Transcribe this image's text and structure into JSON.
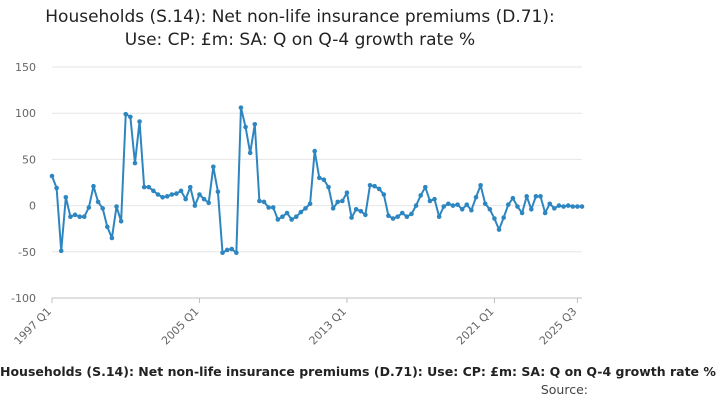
{
  "chart_data": {
    "type": "line",
    "title_line1": "Households (S.14): Net non-life insurance premiums (D.71):",
    "title_line2": "Use: CP: £m: SA: Q on Q-4 growth rate %",
    "xlabel": "",
    "ylabel": "",
    "ylim": [
      -100,
      150
    ],
    "yticks": [
      150,
      100,
      50,
      0,
      -50,
      -100
    ],
    "grid": true,
    "legend": "none",
    "x_tick_labels": [
      {
        "label": "1997 Q1",
        "index": 0
      },
      {
        "label": "2005 Q1",
        "index": 32
      },
      {
        "label": "2013 Q1",
        "index": 64
      },
      {
        "label": "2021 Q1",
        "index": 96
      },
      {
        "label": "2025 Q3",
        "index": 114
      }
    ],
    "series": [
      {
        "name": "Households (S.14): Net non-life insurance premiums (D.71): Use: CP: £m: SA: Q on Q-4 growth rate %",
        "color": "#2e86c1",
        "values": [
          32,
          19,
          -49,
          9,
          -12,
          -10,
          -12,
          -12,
          -2,
          21,
          4,
          -3,
          -23,
          -35,
          -1,
          -17,
          99,
          96,
          46,
          91,
          20,
          20,
          16,
          12,
          9,
          10,
          12,
          13,
          16,
          7,
          20,
          0,
          12,
          7,
          3,
          42,
          15,
          -51,
          -48,
          -47,
          -51,
          106,
          85,
          57,
          88,
          5,
          4,
          -2,
          -2,
          -15,
          -12,
          -8,
          -15,
          -12,
          -7,
          -3,
          2,
          59,
          30,
          28,
          20,
          -3,
          4,
          5,
          14,
          -13,
          -4,
          -6,
          -10,
          22,
          21,
          18,
          12,
          -11,
          -14,
          -12,
          -8,
          -12,
          -9,
          0,
          11,
          20,
          5,
          7,
          -12,
          -1,
          2,
          0,
          1,
          -4,
          1,
          -5,
          9,
          22,
          2,
          -4,
          -14,
          -26,
          -13,
          1,
          8,
          -1,
          -8,
          10,
          -4,
          10,
          10,
          -8,
          2,
          -3,
          0,
          -1,
          0,
          -1,
          -1,
          -1
        ]
      }
    ]
  },
  "footer": {
    "caption": "Households (S.14): Net non-life insurance premiums (D.71): Use: CP: £m: SA: Q on Q-4 growth rate %",
    "source": "Source:"
  },
  "colors": {
    "line": "#2e86c1",
    "grid": "#e6e6e6",
    "axis": "#c0c0c0"
  }
}
